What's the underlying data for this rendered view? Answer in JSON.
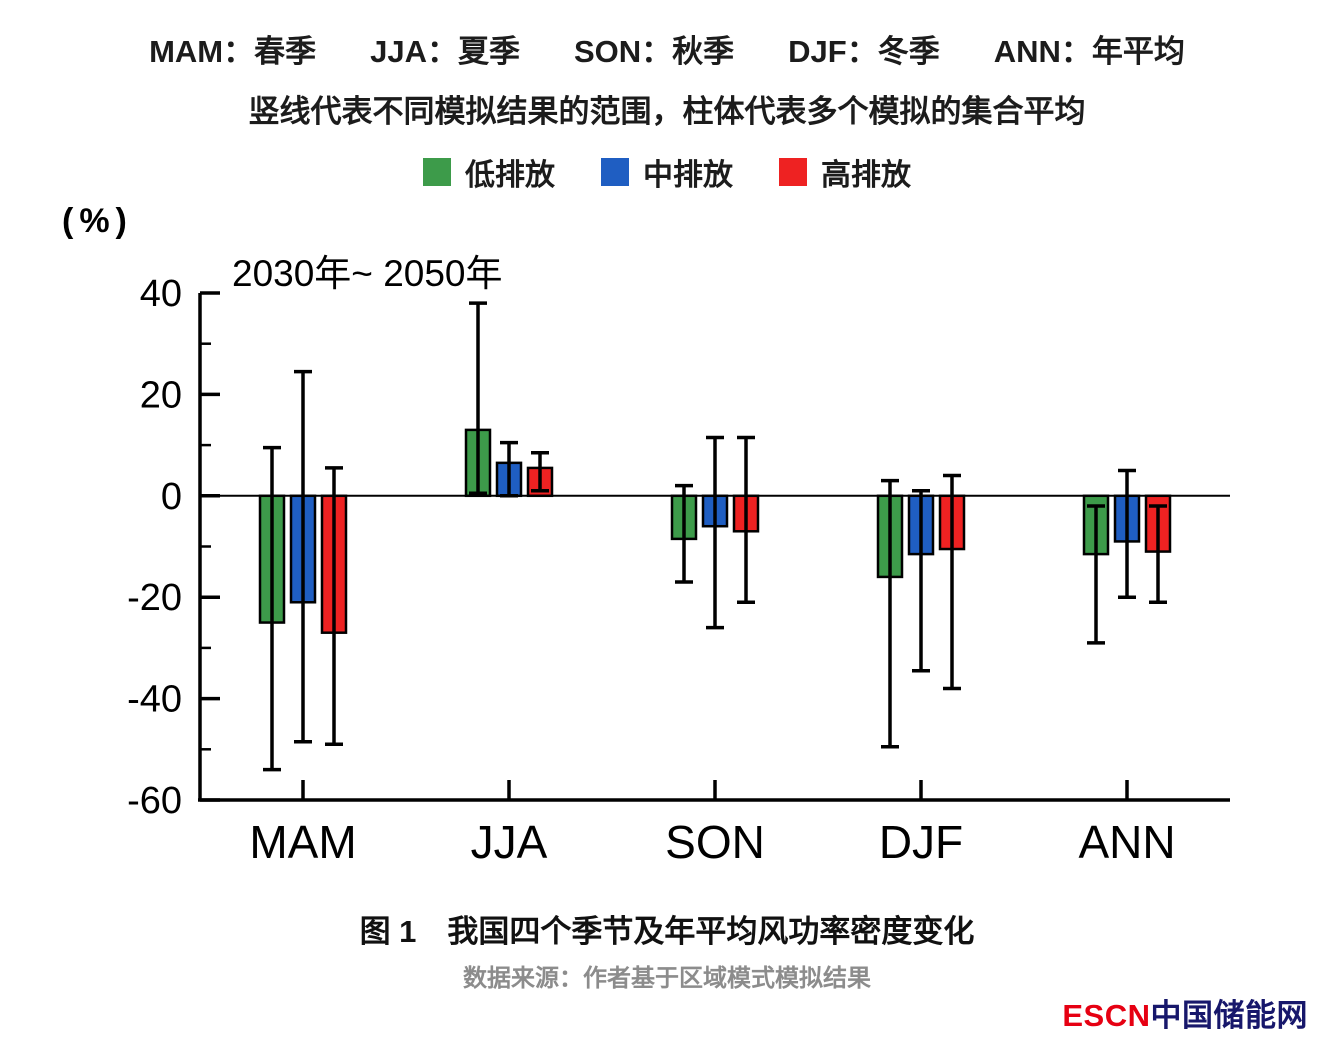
{
  "header": {
    "abbreviations": [
      "MAM：春季",
      "JJA：夏季",
      "SON：秋季",
      "DJF：冬季",
      "ANN：年平均"
    ],
    "explanation": "竖线代表不同模拟结果的范围，柱体代表多个模拟的集合平均"
  },
  "chart_data": {
    "type": "bar",
    "title": "2030年~ 2050年",
    "ylabel": "(%)",
    "ylim": [
      -60,
      40
    ],
    "ytick_step": 20,
    "ytick_minor_step": 10,
    "grid": false,
    "legend_position": "top",
    "categories": [
      "MAM",
      "JJA",
      "SON",
      "DJF",
      "ANN"
    ],
    "series": [
      {
        "name": "低排放",
        "color": "#3d9b4a",
        "values": [
          -25,
          13,
          -8.5,
          -16,
          -11.5
        ],
        "range_low": [
          -54,
          0.5,
          -17,
          -49.5,
          -29
        ],
        "range_high": [
          9.5,
          38,
          2,
          3,
          -2
        ]
      },
      {
        "name": "中排放",
        "color": "#1f5ec2",
        "values": [
          -21,
          6.5,
          -6,
          -11.5,
          -9
        ],
        "range_low": [
          -48.5,
          0,
          -26,
          -34.5,
          -20
        ],
        "range_high": [
          24.5,
          10.5,
          11.5,
          1,
          5
        ]
      },
      {
        "name": "高排放",
        "color": "#ee2222",
        "values": [
          -27,
          5.5,
          -7,
          -10.5,
          -11
        ],
        "range_low": [
          -49,
          1,
          -21,
          -38,
          -21
        ],
        "range_high": [
          5.5,
          8.5,
          11.5,
          4,
          -2
        ]
      }
    ]
  },
  "footer": {
    "caption": "图 1　我国四个季节及年平均风功率密度变化",
    "source": "数据来源：作者基于区域模式模拟结果",
    "watermark_en": "ESCN",
    "watermark_cn": "中国储能网",
    "watermark_en_color": "#e60012",
    "watermark_cn_color": "#17176b"
  }
}
